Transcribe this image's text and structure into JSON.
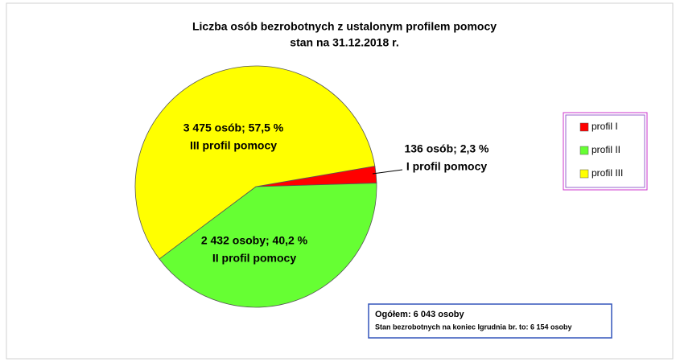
{
  "chart_data": {
    "type": "pie",
    "title": "Liczba osób  bezrobotnych   z ustalonym profilem  pomocy",
    "subtitle": "stan na 31.12.2018 r.",
    "categories": [
      "profil I",
      "profil II",
      "profil III"
    ],
    "values": [
      136,
      2432,
      3475
    ],
    "value_labels": [
      "136 osób; 2,3 %",
      "2 432 osoby; 40,2 %",
      "3 475 osób; 57,5 %"
    ],
    "label_captions": [
      "I profil pomocy",
      "II profil pomocy",
      "III profil pomocy"
    ],
    "colors": [
      "#ff0000",
      "#66ff33",
      "#ffff00"
    ],
    "legend": "right",
    "note": [
      "Ogółem: 6 043 osoby",
      "Stan bezrobotnych  na koniec Igrudnia br. to: 6 154 osoby"
    ]
  }
}
